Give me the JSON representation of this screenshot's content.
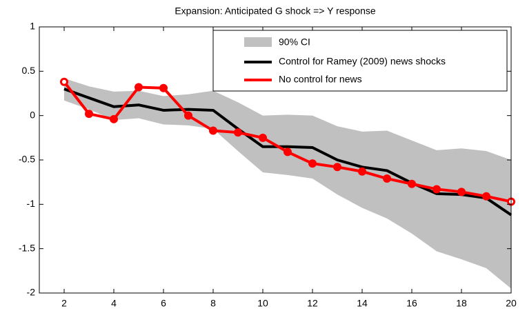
{
  "chart_data": {
    "type": "line",
    "title": "Expansion: Anticipated G shock => Y response",
    "x": [
      2,
      3,
      4,
      5,
      6,
      7,
      8,
      9,
      10,
      11,
      12,
      13,
      14,
      15,
      16,
      17,
      18,
      19,
      20
    ],
    "band": {
      "name": "90% CI",
      "color": "#c0c0c0",
      "upper": [
        0.42,
        0.33,
        0.27,
        0.28,
        0.22,
        0.24,
        0.28,
        0.15,
        0.0,
        0.01,
        0.0,
        -0.12,
        -0.18,
        -0.17,
        -0.28,
        -0.39,
        -0.37,
        -0.4,
        -0.5
      ],
      "lower": [
        0.17,
        0.07,
        -0.05,
        -0.03,
        -0.1,
        -0.11,
        -0.15,
        -0.4,
        -0.64,
        -0.67,
        -0.71,
        -0.89,
        -1.04,
        -1.16,
        -1.33,
        -1.53,
        -1.62,
        -1.72,
        -1.95
      ]
    },
    "series": [
      {
        "name": "Control for Ramey (2009) news shocks",
        "color": "#000000",
        "values": [
          0.3,
          0.2,
          0.1,
          0.12,
          0.06,
          0.07,
          0.06,
          -0.15,
          -0.35,
          -0.35,
          -0.36,
          -0.5,
          -0.58,
          -0.62,
          -0.76,
          -0.88,
          -0.89,
          -0.93,
          -1.12
        ]
      },
      {
        "name": "No control for news",
        "color": "#ff0000",
        "markers": true,
        "values": [
          0.38,
          0.02,
          -0.04,
          0.32,
          0.31,
          0.0,
          -0.17,
          -0.19,
          -0.25,
          -0.41,
          -0.54,
          -0.58,
          -0.63,
          -0.71,
          -0.77,
          -0.83,
          -0.86,
          -0.91,
          -0.97
        ]
      }
    ],
    "xlim": [
      1,
      20
    ],
    "xticks": [
      2,
      4,
      6,
      8,
      10,
      12,
      14,
      16,
      18,
      20
    ],
    "ylim": [
      -2,
      1
    ],
    "yticks": [
      -2,
      -1.5,
      -1,
      -0.5,
      0,
      0.5,
      1
    ],
    "legend": "upper-right"
  }
}
